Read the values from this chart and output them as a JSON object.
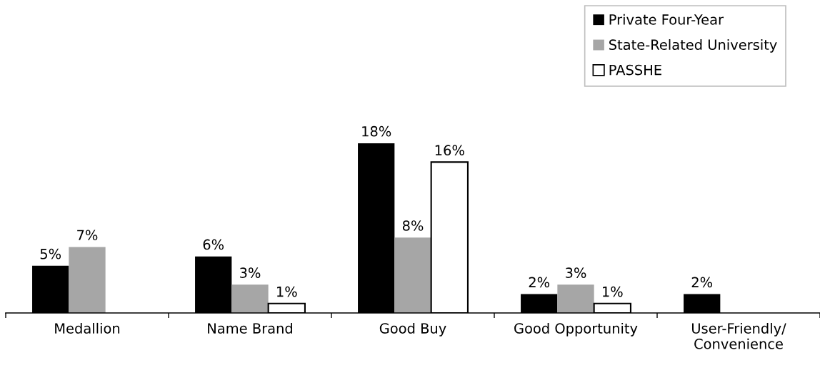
{
  "chart_data": {
    "type": "bar",
    "categories": [
      "Medallion",
      "Name Brand",
      "Good Buy",
      "Good Opportunity",
      "User-Friendly/\nConvenience"
    ],
    "series": [
      {
        "name": "Private Four-Year",
        "color": "#000000",
        "values": [
          5,
          6,
          18,
          2,
          2
        ],
        "value_labels": [
          "5%",
          "6%",
          "18%",
          "2%",
          "2%"
        ]
      },
      {
        "name": "State-Related University",
        "color": "#a6a6a6",
        "values": [
          7,
          3,
          8,
          3,
          null
        ],
        "value_labels": [
          "7%",
          "3%",
          "8%",
          "3%",
          null
        ]
      },
      {
        "name": "PASSHE",
        "color": "#ffffff",
        "values": [
          null,
          1,
          16,
          1,
          null
        ],
        "value_labels": [
          null,
          "1%",
          "16%",
          "1%",
          null
        ]
      }
    ],
    "legend": "top right",
    "tick_labels": "x",
    "grid": false
  }
}
